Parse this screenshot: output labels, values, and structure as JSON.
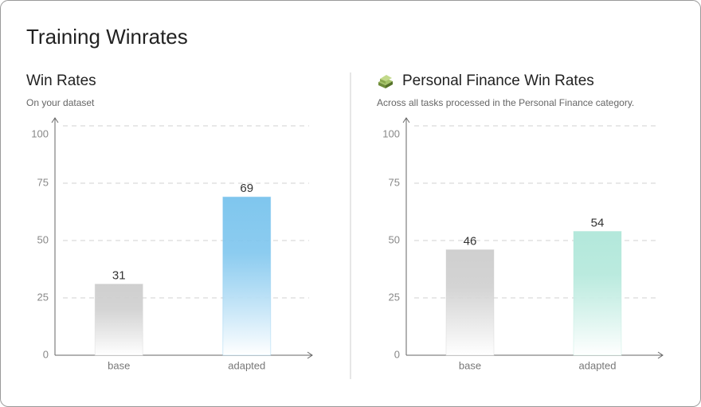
{
  "title": "Training Winrates",
  "chart_data": [
    {
      "type": "bar",
      "title": "Win Rates",
      "subtitle": "On your dataset",
      "categories": [
        "base",
        "adapted"
      ],
      "values": [
        31,
        69
      ],
      "colors": [
        "#cfcfcf",
        "#7fc6ee"
      ],
      "ylim": [
        0,
        100
      ],
      "yticks": [
        0,
        25,
        50,
        75,
        100
      ],
      "grid": true
    },
    {
      "type": "bar",
      "title": "Personal Finance Win Rates",
      "subtitle": "Across all tasks processed in the Personal Finance category.",
      "categories": [
        "base",
        "adapted"
      ],
      "values": [
        46,
        54
      ],
      "colors": [
        "#cfcfcf",
        "#b3e8db"
      ],
      "ylim": [
        0,
        100
      ],
      "yticks": [
        0,
        25,
        50,
        75,
        100
      ],
      "grid": true
    }
  ]
}
